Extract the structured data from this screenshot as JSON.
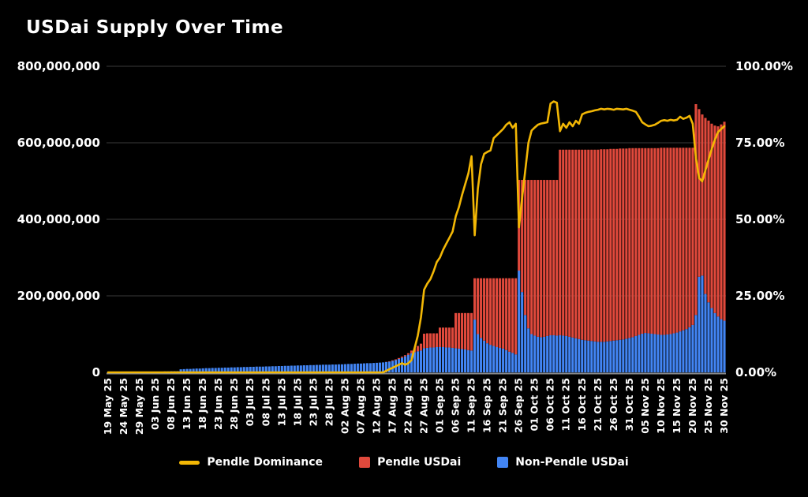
{
  "title": "USDai Supply Over Time",
  "colors": {
    "background": "#000000",
    "pendle_bar": "#e0493c",
    "non_pendle_bar": "#4285f4",
    "dominance_line": "#f2b705",
    "grid": "#3a3a3a",
    "axis": "#8a8a8a",
    "text": "#ffffff"
  },
  "legend": [
    {
      "label": "Pendle Dominance"
    },
    {
      "label": "Pendle USDai"
    },
    {
      "label": "Non-Pendle USDai"
    }
  ],
  "chart_data": {
    "type": "stacked-bar+line",
    "title": "USDai Supply Over Time",
    "grid": "horizontal",
    "legend_position": "bottom-center",
    "x_tick_every": 5,
    "x_labels": [
      "19 May 25",
      "24 May 25",
      "29 May 25",
      "03 Jun 25",
      "08 Jun 25",
      "13 Jun 25",
      "18 Jun 25",
      "23 Jun 25",
      "28 Jun 25",
      "03 Jul 25",
      "08 Jul 25",
      "13 Jul 25",
      "18 Jul 25",
      "23 Jul 25",
      "28 Jul 25",
      "02 Aug 25",
      "07 Aug 25",
      "12 Aug 25",
      "17 Aug 25",
      "22 Aug 25",
      "27 Aug 25",
      "01 Sep 25",
      "06 Sep 25",
      "11 Sep 25",
      "16 Sep 25",
      "21 Sep 25",
      "26 Sep 25",
      "01 Oct 25",
      "06 Oct 25",
      "11 Oct 25",
      "16 Oct 25",
      "21 Oct 25",
      "26 Oct 25",
      "31 Oct 25",
      "05 Nov 25",
      "10 Nov 25",
      "15 Nov 25",
      "20 Nov 25",
      "25 Nov 25",
      "30 Nov 25"
    ],
    "y_left": {
      "ticks": [
        "0",
        "200,000,000",
        "400,000,000",
        "600,000,000",
        "800,000,000"
      ],
      "min": 0,
      "max": 800000000,
      "unit": "USDai"
    },
    "y_right": {
      "ticks": [
        "0.00%",
        "25.00%",
        "50.00%",
        "75.00%",
        "100.00%"
      ],
      "min": 0,
      "max": 100,
      "unit": "%"
    },
    "series": [
      {
        "name": "Non-Pendle USDai",
        "type": "bar",
        "stack": "supply",
        "axis": "left",
        "unit": "millions",
        "color_key": "non_pendle_bar",
        "values": [
          0.5,
          0.5,
          0.5,
          0.5,
          0.5,
          0.5,
          0.5,
          0.5,
          0.5,
          1,
          1,
          1,
          1,
          1,
          1,
          1,
          2,
          2,
          2.5,
          2.5,
          3,
          3,
          3,
          8,
          8.5,
          9,
          9,
          9.5,
          10,
          10,
          10.5,
          11,
          11,
          11.5,
          11.5,
          12,
          12,
          12.5,
          12.5,
          13,
          13,
          13.5,
          13.5,
          14,
          14,
          14.5,
          14.5,
          15,
          15,
          15,
          15.5,
          15.5,
          16,
          16,
          16.5,
          16.5,
          17,
          17,
          17.5,
          17.5,
          18,
          18,
          18.5,
          18.5,
          19,
          19,
          19.5,
          19.5,
          20,
          20,
          20,
          20.5,
          20.5,
          21,
          21,
          21.5,
          22,
          22,
          22.5,
          23,
          23,
          23.5,
          24,
          24,
          24.5,
          25,
          25.5,
          26,
          27,
          28,
          30,
          32,
          35,
          38,
          42,
          46,
          50,
          53,
          55,
          57,
          63,
          64,
          65,
          65,
          66,
          66,
          66,
          65,
          65,
          64,
          63,
          62,
          61,
          60,
          58,
          57,
          138,
          100,
          90,
          83,
          76,
          72,
          69,
          66,
          64,
          62,
          58,
          54,
          51,
          47,
          266,
          210,
          150,
          115,
          100,
          96,
          93,
          92,
          93,
          95,
          97,
          97,
          96,
          97,
          96,
          95,
          93,
          91,
          89,
          87,
          85,
          84,
          83,
          82,
          81,
          80,
          80,
          80,
          81,
          82,
          83,
          84,
          85,
          86,
          88,
          90,
          92,
          95,
          98,
          101,
          103,
          102,
          101,
          100,
          99,
          98,
          98,
          99,
          100,
          102,
          104,
          107,
          110,
          113,
          118,
          124,
          150,
          250,
          253,
          205,
          183,
          168,
          155,
          146,
          139,
          135
        ]
      },
      {
        "name": "Pendle USDai",
        "type": "bar",
        "stack": "supply",
        "axis": "left",
        "unit": "millions",
        "color_key": "pendle_bar",
        "values": [
          0,
          0,
          0,
          0,
          0,
          0,
          0,
          0,
          0,
          0,
          0,
          0,
          0,
          0,
          0,
          0,
          0,
          0,
          0,
          0,
          0,
          0,
          0,
          0,
          0,
          0,
          0,
          0,
          0,
          0,
          0,
          0,
          0,
          0,
          0,
          0,
          0,
          0,
          0,
          0,
          0,
          0,
          0,
          0,
          0,
          0,
          0,
          0,
          0,
          0,
          0,
          0,
          0,
          0,
          0,
          0,
          0,
          0,
          0,
          0,
          0,
          0,
          0,
          0,
          0,
          0,
          0,
          0,
          0,
          0,
          0,
          0,
          0,
          0,
          0,
          0,
          0,
          0,
          0,
          0,
          0,
          0,
          0,
          0,
          0,
          0,
          0,
          0,
          0.5,
          1,
          1.5,
          2,
          2.5,
          3,
          3,
          4,
          7,
          10,
          14,
          18,
          38,
          38,
          37,
          37,
          36,
          51,
          51,
          52,
          52,
          53,
          92,
          93,
          94,
          95,
          97,
          98,
          108,
          146,
          156,
          163,
          170,
          174,
          177,
          180,
          182,
          184,
          188,
          192,
          195,
          199,
          237,
          293,
          353,
          388,
          403,
          407,
          410,
          411,
          410,
          408,
          406,
          406,
          407,
          485,
          486,
          487,
          489,
          491,
          493,
          495,
          497,
          498,
          499,
          500,
          501,
          502,
          503,
          503,
          502,
          502,
          501,
          500,
          500,
          499,
          497,
          496,
          494,
          491,
          488,
          485,
          483,
          484,
          485,
          486,
          487,
          489,
          489,
          488,
          487,
          485,
          483,
          480,
          477,
          474,
          469,
          463,
          551,
          438,
          421,
          460,
          475,
          482,
          490,
          497,
          509,
          520
        ]
      },
      {
        "name": "Pendle Dominance",
        "type": "line",
        "axis": "right",
        "unit": "%",
        "color_key": "dominance_line",
        "values": [
          0,
          0,
          0,
          0,
          0,
          0,
          0,
          0,
          0,
          0,
          0,
          0,
          0,
          0,
          0,
          0,
          0,
          0,
          0,
          0,
          0,
          0,
          0,
          0,
          0,
          0,
          0,
          0,
          0,
          0,
          0,
          0,
          0,
          0,
          0,
          0,
          0,
          0,
          0,
          0,
          0,
          0,
          0,
          0,
          0,
          0,
          0,
          0,
          0,
          0,
          0,
          0,
          0,
          0,
          0,
          0,
          0,
          0,
          0,
          0,
          0,
          0,
          0,
          0,
          0,
          0,
          0,
          0,
          0,
          0,
          0,
          0,
          0,
          0,
          0,
          0,
          0,
          0,
          0,
          0,
          0,
          0,
          0,
          0,
          0,
          0,
          0,
          0,
          0.5,
          1,
          1.5,
          2,
          2.5,
          3,
          2.5,
          3,
          4,
          8,
          12,
          18,
          27,
          29,
          30.5,
          33,
          36,
          37.5,
          40,
          42,
          44,
          46,
          51,
          54,
          58,
          61.5,
          65,
          70.6,
          44.8,
          60,
          68,
          71.4,
          72,
          72.5,
          76.5,
          77.5,
          78.5,
          79.5,
          80.9,
          81.7,
          79.9,
          81.2,
          47.4,
          57,
          66,
          75,
          79,
          80,
          80.9,
          81.3,
          81.5,
          81.7,
          87.8,
          88.5,
          88.1,
          78.8,
          81.2,
          79.9,
          81.7,
          80.4,
          82.2,
          81.2,
          84.3,
          84.8,
          85.1,
          85.3,
          85.6,
          85.8,
          86.1,
          85.9,
          86.1,
          86,
          85.8,
          86.1,
          86,
          85.9,
          86.1,
          85.8,
          85.5,
          85.1,
          83.5,
          81.7,
          81,
          80.4,
          80.6,
          80.9,
          81.5,
          82.2,
          82.4,
          82.2,
          82.5,
          82.3,
          82.5,
          83.5,
          82.8,
          83.2,
          83.8,
          81.2,
          70,
          63.5,
          62.4,
          66,
          69.5,
          73,
          76,
          78.5,
          79.5,
          80.4
        ]
      }
    ]
  }
}
